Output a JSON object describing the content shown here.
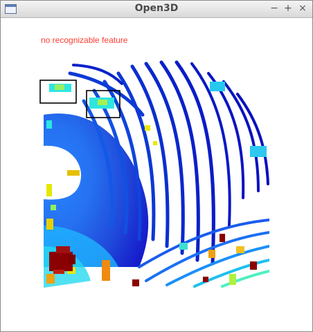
{
  "window": {
    "title": "Open3D",
    "buttons": {
      "minimize": "−",
      "maximize": "+",
      "close": "×"
    }
  },
  "overlay": {
    "status_text": "no recognizable feature"
  },
  "colors": {
    "status_text": "#ff3b30",
    "point_far": "#0a10c8",
    "point_mid": "#1a7cff",
    "point_near": "#22e0e8",
    "point_hot": "#e8e800",
    "point_red": "#8b0000",
    "detection_box": "#000000"
  },
  "icons": {
    "app": "window-app-icon",
    "minimize": "minimize-icon",
    "maximize": "maximize-icon",
    "close": "close-icon"
  }
}
